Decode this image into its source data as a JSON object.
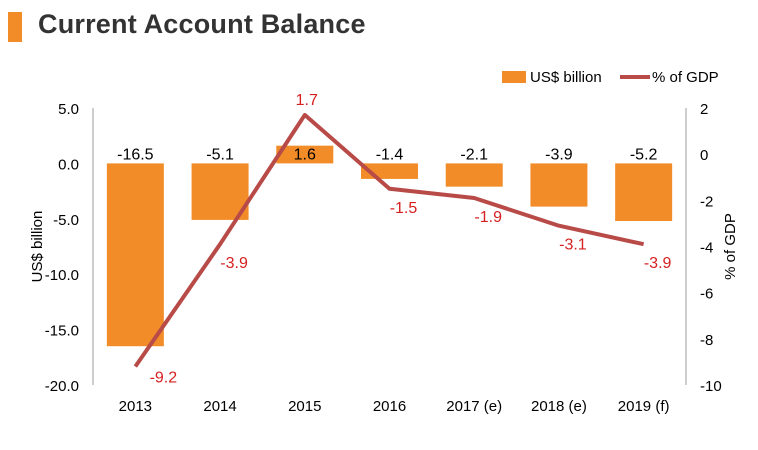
{
  "title": "Current Account Balance",
  "colors": {
    "bar": "#f28c28",
    "line": "#b84a47",
    "line_label": "#d61f1f",
    "accent": "#f28c28",
    "axis": "#9e9e9e"
  },
  "chart_data": {
    "type": "bar+line",
    "categories": [
      "2013",
      "2014",
      "2015",
      "2016",
      "2017 (e)",
      "2018 (e)",
      "2019 (f)"
    ],
    "series": [
      {
        "name": "US$ billion",
        "type": "bar",
        "axis": "left",
        "values": [
          -16.5,
          -5.1,
          1.6,
          -1.4,
          -2.1,
          -3.9,
          -5.2
        ]
      },
      {
        "name": "% of GDP",
        "type": "line",
        "axis": "right",
        "values": [
          -9.2,
          -3.9,
          1.7,
          -1.5,
          -1.9,
          -3.1,
          -3.9
        ]
      }
    ],
    "ylabel": "US$ billion",
    "y2label": "% of GDP",
    "ylim": [
      -20,
      5
    ],
    "y2lim": [
      -10,
      2
    ],
    "yticks": [
      "5.0",
      "0.0",
      "-5.0",
      "-10.0",
      "-15.0",
      "-20.0"
    ],
    "y2ticks": [
      "2",
      "0",
      "-2",
      "-4",
      "-6",
      "-8",
      "-10"
    ],
    "bar_labels": [
      "-16.5",
      "-5.1",
      "1.6",
      "-1.4",
      "-2.1",
      "-3.9",
      "-5.2"
    ],
    "line_labels": [
      "-9.2",
      "-3.9",
      "1.7",
      "-1.5",
      "-1.9",
      "-3.1",
      "-3.9"
    ],
    "legend": {
      "position": "top-right",
      "items": [
        "US$ billion",
        "% of GDP"
      ]
    },
    "grid": false
  }
}
